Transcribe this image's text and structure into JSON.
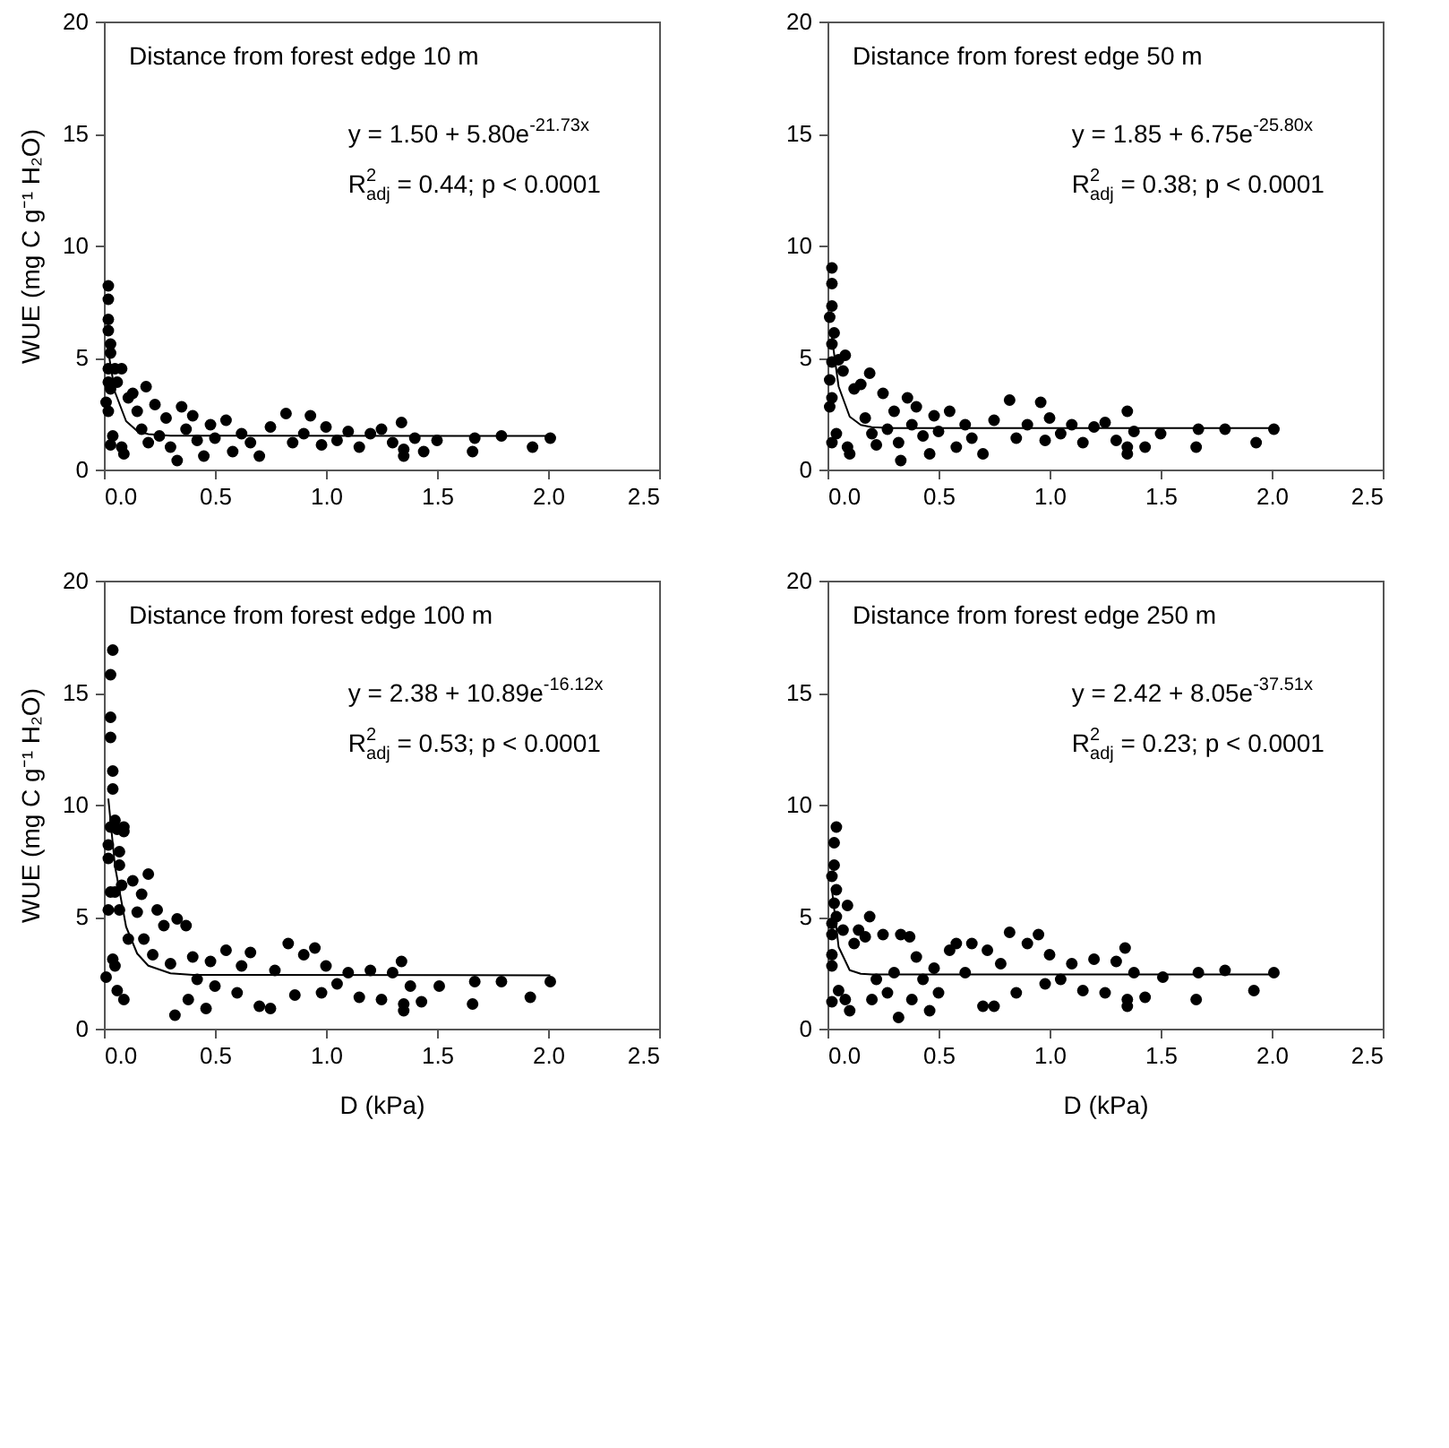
{
  "chart_data": [
    {
      "type": "scatter",
      "title": "Distance from forest edge 10 m",
      "ylabel": "WUE (mg C g⁻¹ H₂O)",
      "annotations": [
        "y = 1.50 + 5.80e$^{-21.73x}$",
        "R$^{2}$$_{adj}$ = 0.44; p < 0.0001"
      ],
      "xlim": [
        0,
        2.5
      ],
      "ylim": [
        0,
        20
      ],
      "xticks": [
        {
          "value": 0,
          "label": "0.0"
        },
        0.5,
        {
          "value": 1,
          "label": "1.0"
        },
        1.5,
        {
          "value": 2,
          "label": "2.0"
        },
        2.5
      ],
      "yticks": [
        0,
        5,
        10,
        15,
        20
      ],
      "grid": false,
      "marker": "circle",
      "series": [
        {
          "color": "#000000",
          "x": [
            0.02,
            0.02,
            0.02,
            0.02,
            0.03,
            0.03,
            0.02,
            0.02,
            0.03,
            0.01,
            0.02,
            0.03,
            0.04,
            0.05,
            0.06,
            0.08,
            0.08,
            0.09,
            0.11,
            0.13,
            0.15,
            0.19,
            0.17,
            0.2,
            0.23,
            0.25,
            0.28,
            0.3,
            0.33,
            0.35,
            0.37,
            0.4,
            0.42,
            0.45,
            0.48,
            0.5,
            0.55,
            0.58,
            0.62,
            0.66,
            0.7,
            0.75,
            0.82,
            0.85,
            0.9,
            0.93,
            0.98,
            1.0,
            1.05,
            1.1,
            1.15,
            1.2,
            1.25,
            1.3,
            1.34,
            1.35,
            1.35,
            1.4,
            1.44,
            1.5,
            1.66,
            1.67,
            1.79,
            1.93,
            2.01
          ],
          "values": [
            8.2,
            7.6,
            6.7,
            6.2,
            5.6,
            5.2,
            4.5,
            3.9,
            3.6,
            3.0,
            2.6,
            1.1,
            1.5,
            4.5,
            3.9,
            4.5,
            1.0,
            0.7,
            3.2,
            3.4,
            2.6,
            3.7,
            1.8,
            1.2,
            2.9,
            1.5,
            2.3,
            1.0,
            0.4,
            2.8,
            1.8,
            2.4,
            1.3,
            0.6,
            2.0,
            1.4,
            2.2,
            0.8,
            1.6,
            1.2,
            0.6,
            1.9,
            2.5,
            1.2,
            1.6,
            2.4,
            1.1,
            1.9,
            1.3,
            1.7,
            1.0,
            1.6,
            1.8,
            1.2,
            2.1,
            0.6,
            0.9,
            1.4,
            0.8,
            1.3,
            0.8,
            1.4,
            1.5,
            1.0,
            1.4
          ]
        },
        {
          "type": "line",
          "color": "#000000",
          "line_style": "solid",
          "x": [
            0.02,
            0.05,
            0.1,
            0.15,
            0.2,
            0.3,
            2.01
          ],
          "marker": "none",
          "values": [
            5.25,
            3.46,
            2.16,
            1.72,
            1.58,
            1.51,
            1.5
          ]
        }
      ]
    },
    {
      "type": "scatter",
      "title": "Distance from forest edge 50 m",
      "annotations": [
        "y = 1.85 + 6.75e$^{-25.80x}$",
        "R$^{2}$$_{adj}$ = 0.38; p < 0.0001"
      ],
      "xlim": [
        0,
        2.5
      ],
      "ylim": [
        0,
        20
      ],
      "xticks": [
        {
          "value": 0,
          "label": "0.0"
        },
        0.5,
        {
          "value": 1,
          "label": "1.0"
        },
        1.5,
        {
          "value": 2,
          "label": "2.0"
        },
        2.5
      ],
      "yticks": [
        0,
        5,
        10,
        15,
        20
      ],
      "grid": false,
      "marker": "circle",
      "series": [
        {
          "color": "#000000",
          "x": [
            0.02,
            0.02,
            0.02,
            0.01,
            0.03,
            0.02,
            0.02,
            0.01,
            0.02,
            0.01,
            0.02,
            0.04,
            0.05,
            0.07,
            0.08,
            0.09,
            0.1,
            0.12,
            0.15,
            0.17,
            0.19,
            0.2,
            0.22,
            0.25,
            0.27,
            0.3,
            0.32,
            0.33,
            0.36,
            0.38,
            0.4,
            0.43,
            0.46,
            0.48,
            0.5,
            0.55,
            0.58,
            0.62,
            0.65,
            0.7,
            0.75,
            0.82,
            0.85,
            0.9,
            0.96,
            0.98,
            1.0,
            1.05,
            1.1,
            1.15,
            1.2,
            1.25,
            1.3,
            1.35,
            1.35,
            1.35,
            1.38,
            1.43,
            1.5,
            1.66,
            1.67,
            1.79,
            1.93,
            2.01
          ],
          "values": [
            9.0,
            8.3,
            7.3,
            6.8,
            6.1,
            5.6,
            4.8,
            4.0,
            3.2,
            2.8,
            1.2,
            1.6,
            4.9,
            4.4,
            5.1,
            1.0,
            0.7,
            3.6,
            3.8,
            2.3,
            4.3,
            1.6,
            1.1,
            3.4,
            1.8,
            2.6,
            1.2,
            0.4,
            3.2,
            2.0,
            2.8,
            1.5,
            0.7,
            2.4,
            1.7,
            2.6,
            1.0,
            2.0,
            1.4,
            0.7,
            2.2,
            3.1,
            1.4,
            2.0,
            3.0,
            1.3,
            2.3,
            1.6,
            2.0,
            1.2,
            1.9,
            2.1,
            1.3,
            2.6,
            0.7,
            1.0,
            1.7,
            1.0,
            1.6,
            1.0,
            1.8,
            1.8,
            1.2,
            1.8
          ]
        },
        {
          "type": "line",
          "color": "#000000",
          "line_style": "solid",
          "x": [
            0.02,
            0.05,
            0.1,
            0.15,
            0.2,
            0.3,
            2.01
          ],
          "marker": "none",
          "values": [
            5.88,
            3.71,
            2.36,
            1.99,
            1.89,
            1.85,
            1.85
          ]
        }
      ]
    },
    {
      "type": "scatter",
      "title": "Distance from forest edge 100 m",
      "xlabel": "D (kPa)",
      "ylabel": "WUE (mg C g⁻¹ H₂O)",
      "annotations": [
        "y = 2.38 + 10.89e$^{-16.12x}$",
        "R$^{2}$$_{adj}$ = 0.53; p < 0.0001"
      ],
      "xlim": [
        0,
        2.5
      ],
      "ylim": [
        0,
        20
      ],
      "xticks": [
        {
          "value": 0,
          "label": "0.0"
        },
        0.5,
        {
          "value": 1,
          "label": "1.0"
        },
        1.5,
        {
          "value": 2,
          "label": "2.0"
        },
        2.5
      ],
      "yticks": [
        0,
        5,
        10,
        15,
        20
      ],
      "grid": false,
      "marker": "circle",
      "series": [
        {
          "color": "#000000",
          "x": [
            0.04,
            0.03,
            0.03,
            0.03,
            0.04,
            0.04,
            0.05,
            0.03,
            0.02,
            0.02,
            0.06,
            0.09,
            0.09,
            0.07,
            0.07,
            0.03,
            0.05,
            0.08,
            0.02,
            0.07,
            0.04,
            0.05,
            0.01,
            0.06,
            0.09,
            0.13,
            0.17,
            0.2,
            0.11,
            0.15,
            0.18,
            0.22,
            0.24,
            0.27,
            0.3,
            0.32,
            0.33,
            0.37,
            0.38,
            0.4,
            0.42,
            0.46,
            0.48,
            0.5,
            0.55,
            0.6,
            0.62,
            0.66,
            0.7,
            0.75,
            0.77,
            0.83,
            0.86,
            0.9,
            0.95,
            0.98,
            1.0,
            1.05,
            1.1,
            1.15,
            1.2,
            1.25,
            1.3,
            1.34,
            1.35,
            1.35,
            1.38,
            1.43,
            1.51,
            1.66,
            1.67,
            1.79,
            1.92,
            2.01
          ],
          "values": [
            16.9,
            15.8,
            13.9,
            13.0,
            11.5,
            10.7,
            9.3,
            9.0,
            8.2,
            7.6,
            8.9,
            9.0,
            8.8,
            7.9,
            7.3,
            6.1,
            6.1,
            6.4,
            5.3,
            5.3,
            3.1,
            2.8,
            2.3,
            1.7,
            1.3,
            6.6,
            6.0,
            6.9,
            4.0,
            5.2,
            4.0,
            3.3,
            5.3,
            4.6,
            2.9,
            0.6,
            4.9,
            4.6,
            1.3,
            3.2,
            2.2,
            0.9,
            3.0,
            1.9,
            3.5,
            1.6,
            2.8,
            3.4,
            1.0,
            0.9,
            2.6,
            3.8,
            1.5,
            3.3,
            3.6,
            1.6,
            2.8,
            2.0,
            2.5,
            1.4,
            2.6,
            1.3,
            2.5,
            3.0,
            0.8,
            1.1,
            1.9,
            1.2,
            1.9,
            1.1,
            2.1,
            2.1,
            1.4,
            2.1
          ]
        },
        {
          "type": "line",
          "color": "#000000",
          "line_style": "solid",
          "x": [
            0.02,
            0.05,
            0.1,
            0.15,
            0.2,
            0.3,
            0.4,
            2.01
          ],
          "marker": "none",
          "values": [
            10.27,
            7.25,
            4.55,
            3.35,
            2.81,
            2.47,
            2.4,
            2.38
          ]
        }
      ]
    },
    {
      "type": "scatter",
      "title": "Distance from forest edge 250 m",
      "xlabel": "D (kPa)",
      "annotations": [
        "y = 2.42 + 8.05e$^{-37.51x}$",
        "R$^{2}$$_{adj}$ = 0.23; p < 0.0001"
      ],
      "xlim": [
        0,
        2.5
      ],
      "ylim": [
        0,
        20
      ],
      "xticks": [
        {
          "value": 0,
          "label": "0.0"
        },
        0.5,
        {
          "value": 1,
          "label": "1.0"
        },
        1.5,
        {
          "value": 2,
          "label": "2.0"
        },
        2.5
      ],
      "yticks": [
        0,
        5,
        10,
        15,
        20
      ],
      "grid": false,
      "marker": "circle",
      "series": [
        {
          "color": "#000000",
          "x": [
            0.04,
            0.03,
            0.03,
            0.02,
            0.04,
            0.03,
            0.09,
            0.04,
            0.02,
            0.02,
            0.02,
            0.02,
            0.02,
            0.05,
            0.07,
            0.08,
            0.1,
            0.12,
            0.14,
            0.17,
            0.19,
            0.2,
            0.22,
            0.25,
            0.27,
            0.3,
            0.32,
            0.33,
            0.37,
            0.38,
            0.4,
            0.43,
            0.46,
            0.48,
            0.5,
            0.55,
            0.58,
            0.62,
            0.65,
            0.7,
            0.72,
            0.75,
            0.78,
            0.82,
            0.85,
            0.9,
            0.95,
            0.98,
            1.0,
            1.05,
            1.1,
            1.15,
            1.2,
            1.25,
            1.3,
            1.34,
            1.35,
            1.35,
            1.38,
            1.43,
            1.51,
            1.66,
            1.67,
            1.79,
            1.92,
            2.01
          ],
          "values": [
            9.0,
            8.3,
            7.3,
            6.8,
            6.2,
            5.6,
            5.5,
            5.0,
            4.7,
            4.2,
            3.3,
            2.8,
            1.2,
            1.7,
            4.4,
            1.3,
            0.8,
            3.8,
            4.4,
            4.1,
            5.0,
            1.3,
            2.2,
            4.2,
            1.6,
            2.5,
            0.5,
            4.2,
            4.1,
            1.3,
            3.2,
            2.2,
            0.8,
            2.7,
            1.6,
            3.5,
            3.8,
            2.5,
            3.8,
            1.0,
            3.5,
            1.0,
            2.9,
            4.3,
            1.6,
            3.8,
            4.2,
            2.0,
            3.3,
            2.2,
            2.9,
            1.7,
            3.1,
            1.6,
            3.0,
            3.6,
            1.0,
            1.3,
            2.5,
            1.4,
            2.3,
            1.3,
            2.5,
            2.6,
            1.7,
            2.5
          ]
        },
        {
          "type": "line",
          "color": "#000000",
          "line_style": "solid",
          "x": [
            0.02,
            0.05,
            0.1,
            0.15,
            0.2,
            2.01
          ],
          "marker": "none",
          "values": [
            6.22,
            3.65,
            2.61,
            2.45,
            2.42,
            2.42
          ]
        }
      ]
    }
  ]
}
